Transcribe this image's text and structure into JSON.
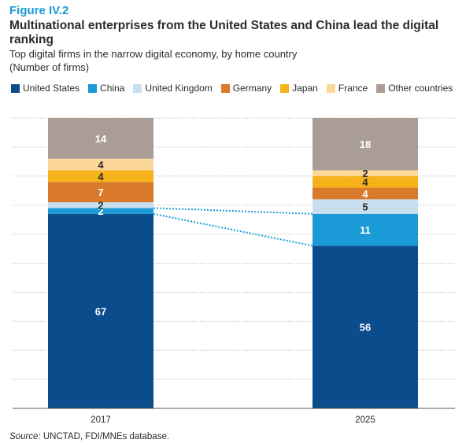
{
  "figure_label": "Figure IV.2",
  "title": "Multinational enterprises from the United States and China lead the digital ranking",
  "subtitle": "Top digital firms in the narrow digital economy, by home country",
  "unit_label": "(Number of firms)",
  "source_label": "Source:",
  "source_text": "UNCTAD, FDI/MNEs database.",
  "chart_data": {
    "type": "bar",
    "stacked": true,
    "categories": [
      "2017",
      "2025"
    ],
    "series": [
      {
        "name": "United States",
        "color": "#0b4c8c",
        "values": [
          67,
          56
        ]
      },
      {
        "name": "China",
        "color": "#1a9ad6",
        "values": [
          2,
          11
        ]
      },
      {
        "name": "United Kingdom",
        "color": "#c8dfef",
        "values": [
          2,
          5
        ]
      },
      {
        "name": "Germany",
        "color": "#d97a2b",
        "values": [
          7,
          4
        ]
      },
      {
        "name": "Japan",
        "color": "#f5b21b",
        "values": [
          4,
          4
        ]
      },
      {
        "name": "France",
        "color": "#fcd79a",
        "values": [
          4,
          2
        ]
      },
      {
        "name": "Other countries",
        "color": "#a99d95",
        "values": [
          14,
          18
        ]
      }
    ],
    "ylim": [
      0,
      100
    ],
    "grid": true,
    "legend_position": "top",
    "connector_series": [
      "United States",
      "China"
    ]
  }
}
